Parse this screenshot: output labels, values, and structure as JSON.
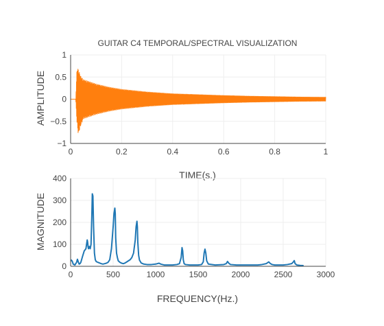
{
  "chart_data": [
    {
      "type": "line",
      "title": "GUITAR C4 TEMPORAL/SPECTRAL VISUALIZATION",
      "xlabel": "TIME(s.)",
      "ylabel": "AMPLITUDE",
      "xlim": [
        0,
        1
      ],
      "ylim": [
        -1,
        1
      ],
      "xticks": [
        0,
        0.2,
        0.4,
        0.6,
        0.8,
        1
      ],
      "xtick_labels": [
        "0",
        "0.2",
        "0.4",
        "0.6",
        "0.8",
        "1"
      ],
      "yticks": [
        -1,
        -0.5,
        0,
        0.5,
        1
      ],
      "ytick_labels": [
        "−1",
        "−0.5",
        "0",
        "0.5",
        "1"
      ],
      "grid": true,
      "series": [
        {
          "color": "#ff7f0e",
          "waveform": "decaying oscillation",
          "onset_x": 0.02,
          "envelope": [
            [
              0.0,
              0.0
            ],
            [
              0.02,
              0.0
            ],
            [
              0.025,
              0.72
            ],
            [
              0.03,
              0.68
            ],
            [
              0.04,
              0.52
            ],
            [
              0.05,
              0.45
            ],
            [
              0.1,
              0.35
            ],
            [
              0.15,
              0.28
            ],
            [
              0.2,
              0.23
            ],
            [
              0.3,
              0.17
            ],
            [
              0.4,
              0.13
            ],
            [
              0.5,
              0.11
            ],
            [
              0.6,
              0.09
            ],
            [
              0.7,
              0.075
            ],
            [
              0.8,
              0.065
            ],
            [
              0.9,
              0.055
            ],
            [
              1.0,
              0.05
            ]
          ],
          "negative_envelope": [
            [
              0.0,
              0.0
            ],
            [
              0.02,
              0.0
            ],
            [
              0.025,
              -0.55
            ],
            [
              0.03,
              -0.8
            ],
            [
              0.04,
              -0.6
            ],
            [
              0.05,
              -0.45
            ],
            [
              0.1,
              -0.35
            ],
            [
              0.15,
              -0.28
            ],
            [
              0.2,
              -0.23
            ],
            [
              0.3,
              -0.17
            ],
            [
              0.4,
              -0.13
            ],
            [
              0.5,
              -0.11
            ],
            [
              0.6,
              -0.09
            ],
            [
              0.7,
              -0.075
            ],
            [
              0.8,
              -0.065
            ],
            [
              0.9,
              -0.055
            ],
            [
              1.0,
              -0.05
            ]
          ]
        }
      ]
    },
    {
      "type": "line",
      "xlabel": "FREQUENCY(Hz.)",
      "ylabel": "MAGNITUDE",
      "xlim": [
        0,
        3000
      ],
      "ylim": [
        0,
        400
      ],
      "xticks": [
        0,
        500,
        1000,
        1500,
        2000,
        2500,
        3000
      ],
      "xtick_labels": [
        "0",
        "500",
        "1000",
        "1500",
        "2000",
        "2500",
        "3000"
      ],
      "yticks": [
        0,
        100,
        200,
        300,
        400
      ],
      "ytick_labels": [
        "0",
        "100",
        "200",
        "300",
        "400"
      ],
      "grid": true,
      "series": [
        {
          "color": "#1f77b4",
          "x": [
            0,
            10,
            20,
            30,
            40,
            50,
            60,
            70,
            80,
            90,
            100,
            110,
            120,
            140,
            160,
            180,
            195,
            200,
            205,
            210,
            220,
            230,
            240,
            250,
            255,
            262,
            270,
            280,
            290,
            300,
            320,
            340,
            360,
            380,
            400,
            420,
            440,
            460,
            480,
            500,
            510,
            520,
            525,
            530,
            540,
            550,
            560,
            580,
            600,
            620,
            640,
            660,
            680,
            700,
            720,
            740,
            760,
            770,
            780,
            785,
            790,
            800,
            810,
            830,
            860,
            900,
            950,
            1000,
            1040,
            1060,
            1080,
            1100,
            1150,
            1200,
            1250,
            1280,
            1300,
            1310,
            1318,
            1325,
            1335,
            1350,
            1400,
            1450,
            1500,
            1540,
            1560,
            1570,
            1580,
            1590,
            1600,
            1620,
            1700,
            1800,
            1830,
            1845,
            1860,
            1880,
            1950,
            2000,
            2050,
            2100,
            2150,
            2200,
            2250,
            2300,
            2330,
            2350,
            2370,
            2400,
            2450,
            2500,
            2550,
            2600,
            2620,
            2630,
            2640,
            2660,
            2700,
            2740
          ],
          "values": [
            25,
            28,
            22,
            10,
            8,
            6,
            12,
            18,
            32,
            20,
            10,
            12,
            18,
            45,
            70,
            80,
            120,
            110,
            90,
            80,
            90,
            80,
            100,
            240,
            330,
            320,
            180,
            60,
            30,
            22,
            18,
            15,
            12,
            10,
            12,
            14,
            18,
            30,
            80,
            180,
            240,
            265,
            240,
            130,
            60,
            40,
            25,
            18,
            14,
            12,
            15,
            20,
            25,
            30,
            40,
            60,
            120,
            180,
            205,
            180,
            110,
            50,
            28,
            15,
            10,
            8,
            8,
            10,
            14,
            10,
            8,
            6,
            6,
            6,
            8,
            12,
            40,
            85,
            70,
            30,
            12,
            8,
            6,
            6,
            6,
            8,
            20,
            60,
            78,
            60,
            25,
            10,
            6,
            8,
            12,
            22,
            14,
            8,
            6,
            6,
            6,
            6,
            6,
            6,
            8,
            12,
            20,
            12,
            8,
            6,
            6,
            6,
            8,
            12,
            20,
            26,
            12,
            6,
            4,
            3
          ]
        }
      ]
    }
  ]
}
